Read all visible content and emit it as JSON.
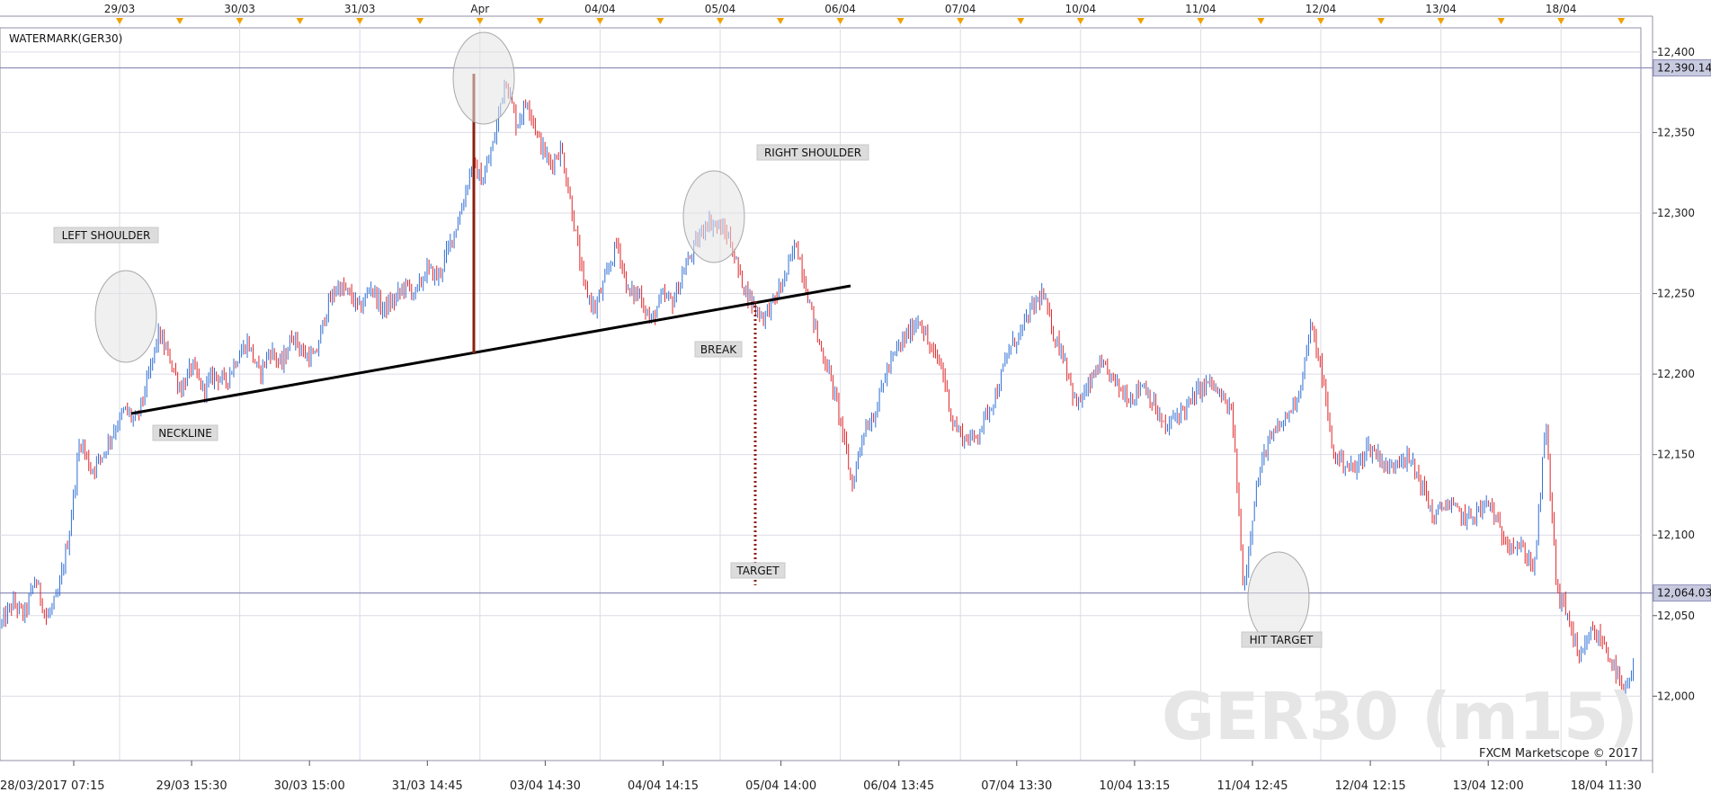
{
  "chart_data": {
    "type": "candlestick",
    "title": "WATERMARK(GER30)",
    "watermark": "GER30 (m15)",
    "credit": "FXCM Marketscope © 2017",
    "ylim": [
      11960,
      12415
    ],
    "y_ticks": [
      "12,400",
      "12,350",
      "12,300",
      "12,250",
      "12,200",
      "12,150",
      "12,100",
      "12,050",
      "12,000"
    ],
    "y_tick_values": [
      12400,
      12350,
      12300,
      12250,
      12200,
      12150,
      12100,
      12050,
      12000
    ],
    "x_ticks_top": [
      "29/03",
      "30/03",
      "31/03",
      "Apr",
      "04/04",
      "05/04",
      "06/04",
      "07/04",
      "10/04",
      "11/04",
      "12/04",
      "13/04",
      "18/04"
    ],
    "x_ticks_bottom": [
      "28/03/2017 07:15",
      "29/03 15:30",
      "30/03 15:00",
      "31/03 14:45",
      "03/04 14:30",
      "04/04 14:15",
      "05/04 14:00",
      "06/04 13:45",
      "07/04 13:30",
      "10/04 13:15",
      "11/04 12:45",
      "12/04 12:15",
      "13/04 12:00",
      "18/04 11:30"
    ],
    "price_lines": [
      {
        "label": "12,390.14",
        "value": 12390.14,
        "color": "#8e8eb8"
      },
      {
        "label": "12,064.03",
        "value": 12064.03,
        "color": "#8e8eb8"
      }
    ],
    "annotations": [
      "LEFT SHOULDER",
      "NECKLINE",
      "RIGHT SHOULDER",
      "BREAK",
      "TARGET",
      "HIT TARGET"
    ],
    "pattern": {
      "name": "Head and Shoulders",
      "head_high": 12388,
      "neckline_at_head": 12208,
      "target": 12064
    },
    "series": [
      {
        "type": "candlestick",
        "up_color": "#2f6fd6",
        "down_color": "#e0262a",
        "close_path": [
          12045,
          12058,
          12050,
          12073,
          12048,
          12062,
          12100,
          12160,
          12140,
          12150,
          12165,
          12178,
          12170,
          12195,
          12225,
          12210,
          12190,
          12205,
          12190,
          12200,
          12195,
          12210,
          12220,
          12200,
          12215,
          12205,
          12225,
          12212,
          12210,
          12240,
          12255,
          12250,
          12240,
          12255,
          12240,
          12245,
          12255,
          12250,
          12265,
          12260,
          12280,
          12300,
          12330,
          12320,
          12345,
          12385,
          12355,
          12370,
          12345,
          12330,
          12340,
          12300,
          12255,
          12240,
          12260,
          12282,
          12250,
          12250,
          12232,
          12248,
          12245,
          12265,
          12280,
          12295,
          12292,
          12285,
          12260,
          12245,
          12235,
          12245,
          12260,
          12282,
          12250,
          12220,
          12200,
          12170,
          12130,
          12165,
          12175,
          12200,
          12215,
          12225,
          12235,
          12215,
          12205,
          12170,
          12160,
          12160,
          12175,
          12190,
          12215,
          12225,
          12240,
          12250,
          12225,
          12210,
          12180,
          12190,
          12205,
          12200,
          12190,
          12185,
          12195,
          12180,
          12165,
          12175,
          12180,
          12190,
          12195,
          12185,
          12175,
          12065,
          12125,
          12155,
          12165,
          12175,
          12190,
          12230,
          12200,
          12150,
          12145,
          12140,
          12155,
          12150,
          12140,
          12150,
          12145,
          12130,
          12110,
          12120,
          12115,
          12110,
          12115,
          12120,
          12100,
          12095,
          12090,
          12080,
          12170,
          12065,
          12050,
          12020,
          12040,
          12035,
          12020,
          12000,
          12020
        ]
      }
    ]
  }
}
